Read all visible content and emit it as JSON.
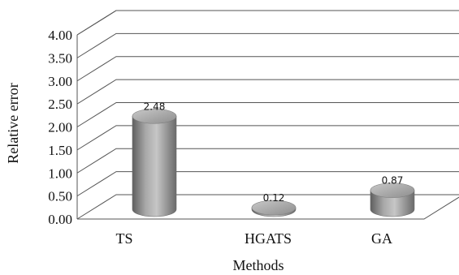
{
  "chart_data": {
    "type": "bar",
    "categories": [
      "TS",
      "HGATS",
      "GA"
    ],
    "values": [
      2.48,
      0.12,
      0.87
    ],
    "data_labels": [
      "2.48",
      "0.12",
      "0.87"
    ],
    "title": "",
    "xlabel": "Methods",
    "ylabel": "Relative error",
    "ylim": [
      0,
      4
    ],
    "yticks": [
      "0.00",
      "0.50",
      "1.00",
      "1.50",
      "2.00",
      "2.50",
      "3.00",
      "3.50",
      "4.00"
    ],
    "grid": true,
    "style": "3d-cylinder",
    "bar_color": "#9a9a9a"
  }
}
